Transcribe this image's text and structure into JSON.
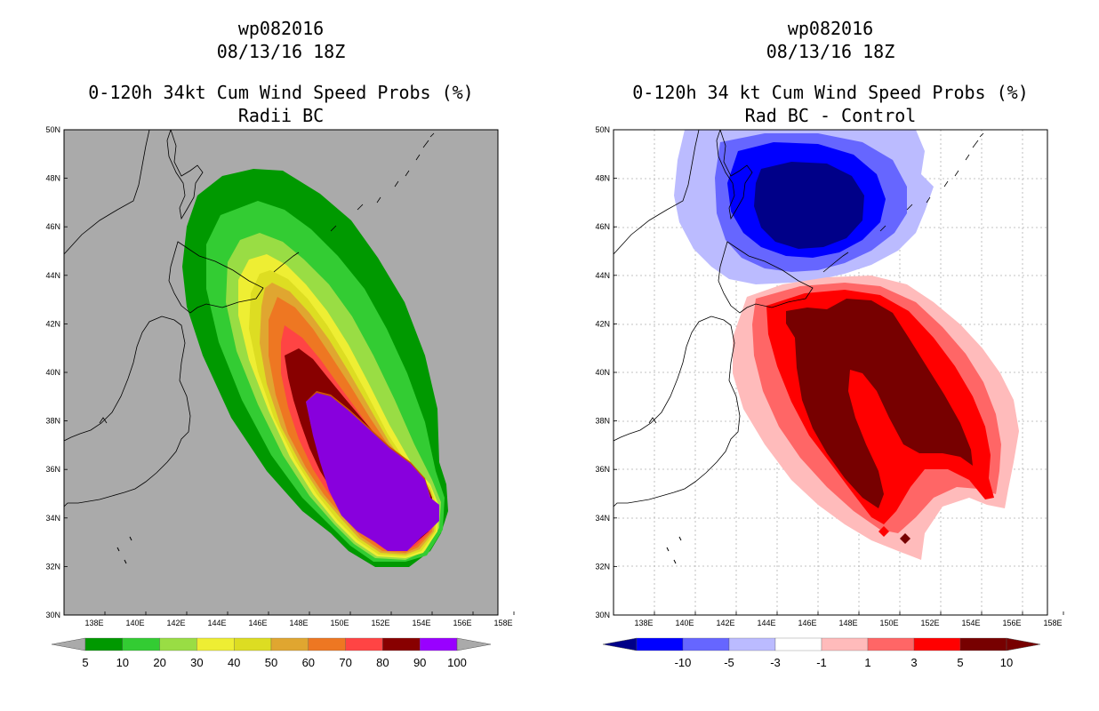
{
  "left": {
    "title_line1": "wp082016",
    "title_line2": "08/13/16 18Z",
    "title_line3": "0-120h 34kt Cum Wind Speed Probs (%)",
    "title_line4": "Radii BC",
    "colorbar": {
      "labels": [
        "5",
        "10",
        "20",
        "30",
        "40",
        "50",
        "60",
        "70",
        "80",
        "90",
        "100"
      ],
      "colors": [
        "#009900",
        "#33cc33",
        "#99dd44",
        "#eeee33",
        "#dddd22",
        "#e0a630",
        "#ee7722",
        "#ff4444",
        "#880000",
        "#8800cc",
        "#9900ff"
      ]
    }
  },
  "right": {
    "title_line1": "wp082016",
    "title_line2": "08/13/16 18Z",
    "title_line3": "0-120h 34 kt Cum Wind Speed Probs (%)",
    "title_line4": "Rad BC - Control",
    "colorbar": {
      "labels": [
        "-10",
        "-5",
        "-3",
        "-1",
        "1",
        "3",
        "5",
        "10"
      ],
      "colors": [
        "#000088",
        "#0000ff",
        "#6666ff",
        "#bbbbff",
        "#ffffff",
        "#ffbbbb",
        "#ff6666",
        "#ff0000",
        "#770000"
      ]
    }
  },
  "axes": {
    "lat_labels": [
      "50N",
      "48N",
      "46N",
      "44N",
      "42N",
      "40N",
      "38N",
      "36N",
      "34N",
      "32N",
      "30N"
    ],
    "lon_labels": [
      "138E",
      "140E",
      "142E",
      "144E",
      "146E",
      "148E",
      "150E",
      "152E",
      "154E",
      "156E",
      "158E"
    ]
  }
}
